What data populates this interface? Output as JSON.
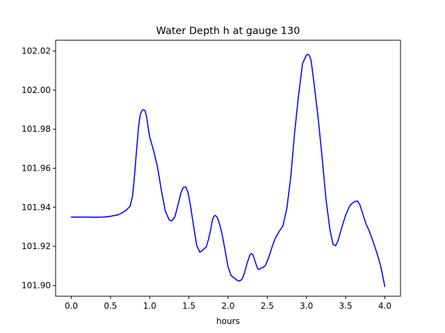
{
  "chart_data": {
    "type": "line",
    "title": "Water Depth h at gauge 130",
    "xlabel": "hours",
    "ylabel": "",
    "xlim": [
      -0.2,
      4.2
    ],
    "ylim": [
      101.8945,
      102.0255
    ],
    "xticks": [
      0.0,
      0.5,
      1.0,
      1.5,
      2.0,
      2.5,
      3.0,
      3.5,
      4.0
    ],
    "xtick_labels": [
      "0.0",
      "0.5",
      "1.0",
      "1.5",
      "2.0",
      "2.5",
      "3.0",
      "3.5",
      "4.0"
    ],
    "yticks": [
      101.9,
      101.92,
      101.94,
      101.96,
      101.98,
      102.0,
      102.02
    ],
    "ytick_labels": [
      "101.90",
      "101.92",
      "101.94",
      "101.96",
      "101.98",
      "102.00",
      "102.02"
    ],
    "grid": false,
    "legend": false,
    "series": [
      {
        "color": "#0000ff",
        "x": [
          0.0,
          0.1,
          0.2,
          0.3,
          0.4,
          0.5,
          0.6,
          0.65,
          0.7,
          0.75,
          0.78,
          0.8,
          0.83,
          0.86,
          0.88,
          0.9,
          0.92,
          0.94,
          0.96,
          0.98,
          1.0,
          1.05,
          1.1,
          1.15,
          1.2,
          1.25,
          1.28,
          1.32,
          1.36,
          1.4,
          1.43,
          1.46,
          1.49,
          1.52,
          1.56,
          1.6,
          1.64,
          1.67,
          1.7,
          1.72,
          1.75,
          1.78,
          1.8,
          1.82,
          1.84,
          1.86,
          1.88,
          1.92,
          1.96,
          2.0,
          2.04,
          2.08,
          2.12,
          2.15,
          2.18,
          2.21,
          2.24,
          2.28,
          2.3,
          2.32,
          2.34,
          2.36,
          2.38,
          2.4,
          2.42,
          2.45,
          2.48,
          2.52,
          2.56,
          2.6,
          2.65,
          2.7,
          2.75,
          2.8,
          2.85,
          2.9,
          2.95,
          3.0,
          3.02,
          3.04,
          3.06,
          3.1,
          3.15,
          3.2,
          3.25,
          3.3,
          3.34,
          3.37,
          3.4,
          3.45,
          3.5,
          3.55,
          3.58,
          3.62,
          3.65,
          3.68,
          3.72,
          3.76,
          3.8,
          3.85,
          3.9,
          3.95,
          4.0
        ],
        "y": [
          101.935,
          101.935,
          101.935,
          101.9349,
          101.935,
          101.9354,
          101.9362,
          101.9372,
          101.9385,
          101.9405,
          101.9455,
          101.953,
          101.968,
          101.982,
          101.9875,
          101.9895,
          101.99,
          101.9895,
          101.9865,
          101.981,
          101.976,
          101.969,
          101.9605,
          101.9485,
          101.938,
          101.9335,
          101.933,
          101.935,
          101.941,
          101.9475,
          101.9502,
          101.9505,
          101.9475,
          101.941,
          101.9305,
          101.9205,
          101.917,
          101.9178,
          101.919,
          101.9195,
          101.9235,
          101.929,
          101.9335,
          101.9355,
          101.9358,
          101.935,
          101.933,
          101.927,
          101.9185,
          101.9095,
          101.905,
          101.9038,
          101.9025,
          101.9023,
          101.9033,
          101.9065,
          101.911,
          101.9158,
          101.9163,
          101.9155,
          101.913,
          101.9105,
          101.9085,
          101.9082,
          101.909,
          101.9092,
          101.9105,
          101.9145,
          101.9195,
          101.924,
          101.9275,
          101.9305,
          101.9395,
          101.9555,
          101.9785,
          101.9975,
          102.0135,
          102.018,
          102.0183,
          102.0175,
          102.015,
          102.0025,
          101.9855,
          101.9655,
          101.944,
          101.9285,
          101.921,
          101.9203,
          101.9225,
          101.9295,
          101.936,
          101.9405,
          101.942,
          101.943,
          101.9432,
          101.9415,
          101.9365,
          101.9315,
          101.928,
          101.9225,
          101.9165,
          101.9095,
          101.8995
        ]
      }
    ]
  }
}
